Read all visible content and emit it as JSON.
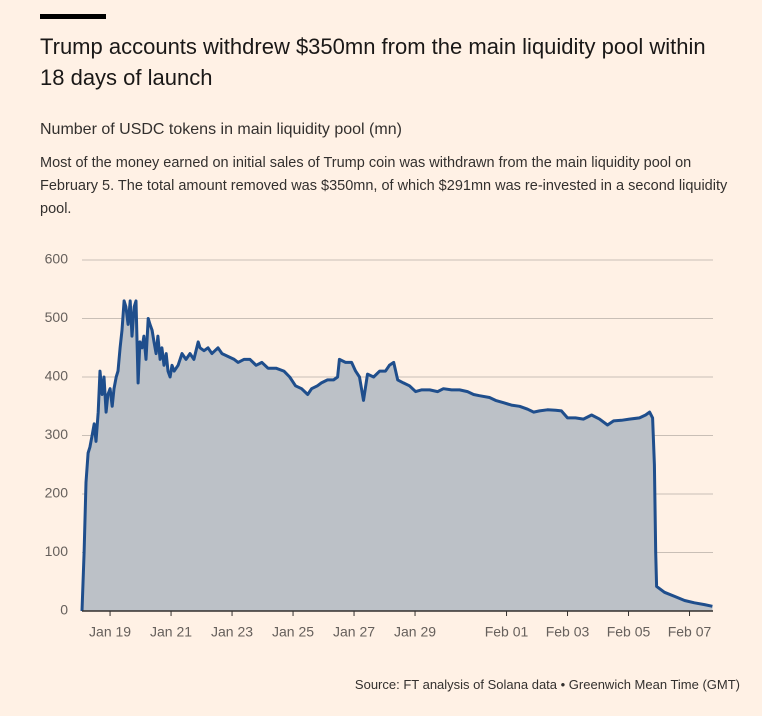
{
  "chart_data": {
    "type": "area",
    "title": "Trump accounts withdrew $350mn from the main liquidity pool within 18 days of launch",
    "subtitle": "Number of USDC tokens in main liquidity pool (mn)",
    "description": "Most of the money earned on initial sales of Trump coin was withdrawn from the main liquidity pool on February 5. The total amount removed was $350mn, of which $291mn was re-invested in a second liquidity pool.",
    "source": "Source: FT analysis of Solana data • Greenwich Mean Time (GMT)",
    "color": "#1f4e8c",
    "fill": "#bcc1c7",
    "grid": true,
    "xlim": [
      0.08,
      20.77
    ],
    "xticks": [
      {
        "value": 1,
        "label": "Jan 19"
      },
      {
        "value": 3,
        "label": "Jan 21"
      },
      {
        "value": 5,
        "label": "Jan 23"
      },
      {
        "value": 7,
        "label": "Jan 25"
      },
      {
        "value": 9,
        "label": "Jan 27"
      },
      {
        "value": 11,
        "label": "Jan 29"
      },
      {
        "value": 14,
        "label": "Feb 01"
      },
      {
        "value": 16,
        "label": "Feb 03"
      },
      {
        "value": 18,
        "label": "Feb 05"
      },
      {
        "value": 20,
        "label": "Feb 07"
      }
    ],
    "ylim": [
      0,
      600
    ],
    "yticks": [
      0,
      100,
      200,
      300,
      400,
      500,
      600
    ],
    "x": [
      0.08,
      0.15,
      0.21,
      0.28,
      0.34,
      0.41,
      0.48,
      0.54,
      0.61,
      0.67,
      0.74,
      0.8,
      0.87,
      0.93,
      1.0,
      1.07,
      1.13,
      1.2,
      1.26,
      1.33,
      1.39,
      1.46,
      1.52,
      1.59,
      1.66,
      1.72,
      1.79,
      1.85,
      1.92,
      1.98,
      2.05,
      2.11,
      2.18,
      2.25,
      2.31,
      2.38,
      2.44,
      2.51,
      2.57,
      2.64,
      2.7,
      2.77,
      2.84,
      2.9,
      2.97,
      3.03,
      3.1,
      3.23,
      3.36,
      3.49,
      3.62,
      3.75,
      3.89,
      3.95,
      4.08,
      4.21,
      4.34,
      4.54,
      4.67,
      4.87,
      5.07,
      5.2,
      5.39,
      5.59,
      5.79,
      5.98,
      6.18,
      6.44,
      6.7,
      6.89,
      7.08,
      7.28,
      7.48,
      7.61,
      7.8,
      7.93,
      8.13,
      8.33,
      8.46,
      8.52,
      8.72,
      8.92,
      9.05,
      9.18,
      9.31,
      9.44,
      9.64,
      9.84,
      10.03,
      10.16,
      10.3,
      10.43,
      10.62,
      10.82,
      11.02,
      11.21,
      11.48,
      11.74,
      11.93,
      12.2,
      12.46,
      12.72,
      12.92,
      13.11,
      13.44,
      13.64,
      13.9,
      14.16,
      14.43,
      14.69,
      14.89,
      15.08,
      15.34,
      15.61,
      15.8,
      16.0,
      16.26,
      16.52,
      16.79,
      17.05,
      17.31,
      17.51,
      17.77,
      18.03,
      18.36,
      18.56,
      18.69,
      18.79,
      18.85,
      18.89,
      18.92,
      19.18,
      19.51,
      19.84,
      20.16,
      20.49,
      20.75
    ],
    "values": [
      0,
      100,
      220,
      270,
      280,
      300,
      320,
      290,
      340,
      410,
      370,
      400,
      340,
      370,
      380,
      350,
      380,
      400,
      410,
      450,
      480,
      530,
      520,
      490,
      530,
      470,
      520,
      530,
      390,
      460,
      450,
      470,
      430,
      500,
      490,
      480,
      460,
      440,
      470,
      430,
      450,
      420,
      440,
      410,
      400,
      420,
      410,
      420,
      440,
      430,
      440,
      430,
      460,
      450,
      445,
      450,
      440,
      450,
      440,
      435,
      430,
      425,
      430,
      430,
      420,
      425,
      415,
      415,
      410,
      400,
      385,
      380,
      370,
      380,
      385,
      390,
      395,
      395,
      400,
      430,
      425,
      425,
      410,
      400,
      360,
      405,
      400,
      410,
      410,
      420,
      425,
      395,
      390,
      385,
      375,
      378,
      378,
      375,
      380,
      378,
      378,
      375,
      370,
      368,
      365,
      360,
      356,
      352,
      350,
      345,
      340,
      342,
      344,
      343,
      342,
      330,
      330,
      328,
      335,
      328,
      318,
      325,
      326,
      328,
      330,
      335,
      340,
      330,
      250,
      100,
      42,
      32,
      25,
      18,
      14,
      11,
      8
    ]
  }
}
